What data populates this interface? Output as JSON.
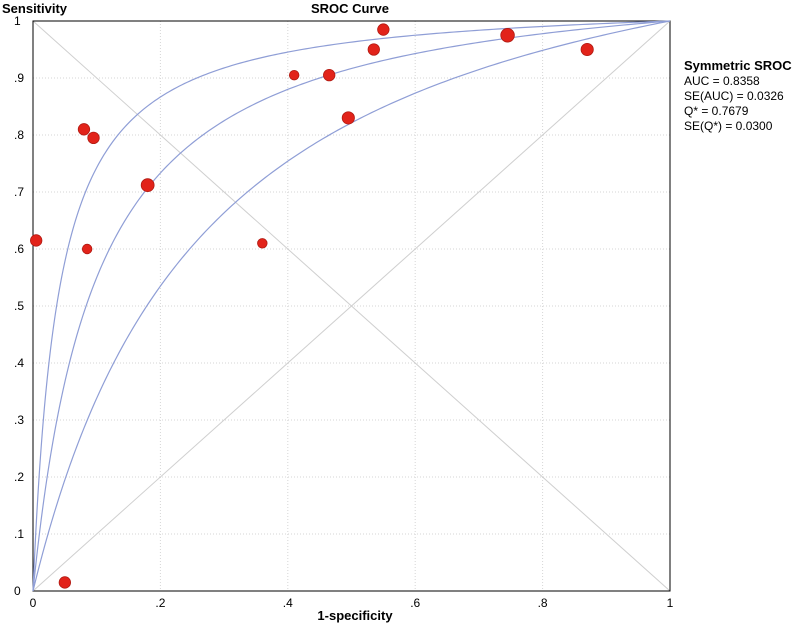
{
  "chart_data": {
    "type": "scatter",
    "title": "SROC Curve",
    "xlabel": "1-specificity",
    "ylabel": "Sensitivity",
    "xlim": [
      0,
      1
    ],
    "ylim": [
      0,
      1
    ],
    "grid": true,
    "x_ticks": [
      "0",
      ".2",
      ".4",
      ".6",
      ".8",
      "1"
    ],
    "y_ticks": [
      "0",
      ".1",
      ".2",
      ".3",
      ".4",
      ".5",
      ".6",
      ".7",
      ".8",
      ".9",
      "1"
    ],
    "sroc_curves": [
      {
        "role": "upper",
        "dor": 26
      },
      {
        "role": "center",
        "dor": 11
      },
      {
        "role": "lower",
        "dor": 4.6
      }
    ],
    "points": [
      {
        "x": 0.005,
        "y": 0.615,
        "weight": 2
      },
      {
        "x": 0.05,
        "y": 0.015,
        "weight": 2
      },
      {
        "x": 0.08,
        "y": 0.81,
        "weight": 2
      },
      {
        "x": 0.085,
        "y": 0.6,
        "weight": 1
      },
      {
        "x": 0.095,
        "y": 0.795,
        "weight": 2
      },
      {
        "x": 0.18,
        "y": 0.712,
        "weight": 3
      },
      {
        "x": 0.36,
        "y": 0.61,
        "weight": 1
      },
      {
        "x": 0.41,
        "y": 0.905,
        "weight": 1
      },
      {
        "x": 0.465,
        "y": 0.905,
        "weight": 2
      },
      {
        "x": 0.495,
        "y": 0.83,
        "weight": 2.5
      },
      {
        "x": 0.535,
        "y": 0.95,
        "weight": 2
      },
      {
        "x": 0.55,
        "y": 0.985,
        "weight": 2
      },
      {
        "x": 0.745,
        "y": 0.975,
        "weight": 3.5
      },
      {
        "x": 0.87,
        "y": 0.95,
        "weight": 2.5
      }
    ],
    "colors": {
      "curve": "#8f9ed6",
      "point": "#e2231a",
      "point_edge": "#b01a12",
      "grid": "#d6d6d6",
      "diagonal": "#cfcfcf"
    }
  },
  "stats": {
    "heading": "Symmetric SROC",
    "auc": "AUC = 0.8358",
    "se_auc": "SE(AUC) = 0.0326",
    "q_star": "Q* = 0.7679",
    "se_q_star": "SE(Q*) = 0.0300"
  }
}
